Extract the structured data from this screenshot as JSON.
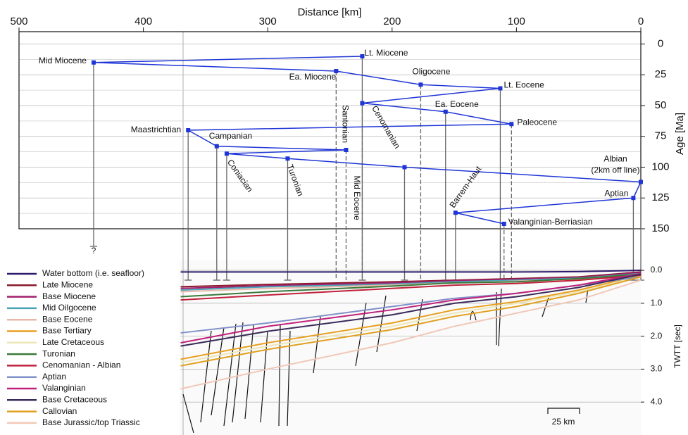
{
  "chart_data": [
    {
      "type": "line",
      "xlabel": "Distance [km]",
      "ylabel": "Age [Ma]",
      "xlim": [
        500,
        0
      ],
      "xticks": [
        500,
        400,
        300,
        200,
        100,
        0
      ],
      "ylim": [
        -10,
        150
      ],
      "yticks": [
        0,
        25,
        50,
        75,
        100,
        125,
        150
      ],
      "minor_yticks": [
        12.5,
        37.5,
        62.5,
        87.5,
        112.5,
        137.5
      ],
      "y_inverted": true,
      "grid": true,
      "color": "#1f35d6",
      "labels": [
        "Lt. Miocene",
        "Mid Miocene",
        "Ea. Miocene",
        "Oligocene",
        "Lt. Eocene",
        "Mid Eocene",
        "Ea. Eocene",
        "Paleocene",
        "Maastrichtian",
        "Campanian",
        "Santonian",
        "Coniacian",
        "Turonian",
        "Cenomanian",
        "Albian",
        "Aptian",
        "Barrem-Haut",
        "Valanginian-Berriasian"
      ],
      "x": [
        224,
        440,
        245,
        177,
        113,
        224,
        157,
        104,
        364,
        341,
        237,
        333,
        284,
        190,
        0,
        6,
        149,
        110
      ],
      "values": [
        10,
        15,
        22,
        33,
        36,
        48,
        55,
        65,
        70,
        83,
        86,
        89,
        93,
        100,
        112,
        125,
        137,
        146
      ],
      "drop_dashed": [
        false,
        false,
        true,
        true,
        false,
        true,
        false,
        true,
        false,
        false,
        true,
        false,
        false,
        false,
        false,
        false,
        false,
        true
      ],
      "annotations": [
        "(2km off line)",
        "?"
      ]
    },
    {
      "type": "line",
      "ylabel": "TWTT [sec]",
      "xlim": [
        500,
        0
      ],
      "ylim": [
        -0.3,
        5.0
      ],
      "yticks": [
        {
          "value": 0,
          "label": "0.0"
        },
        {
          "value": 1,
          "label": "1.0"
        },
        {
          "value": 2,
          "label": "2.0"
        },
        {
          "value": 3,
          "label": "3.0"
        },
        {
          "value": 4,
          "label": "4.0"
        }
      ],
      "x": [
        370,
        300,
        200,
        150,
        100,
        50,
        0
      ],
      "legend": "left",
      "scale_bar_label": "25 km",
      "series": [
        {
          "name": "Water bottom (i.e. seafloor)",
          "color": "#2e1a6b",
          "values": [
            0.05,
            0.05,
            0.05,
            0.05,
            0.05,
            0.04,
            0.0
          ]
        },
        {
          "name": "Late Miocene",
          "color": "#8b1a2b",
          "values": [
            0.5,
            0.43,
            0.35,
            0.3,
            0.25,
            0.2,
            0.05
          ]
        },
        {
          "name": "Base Miocene",
          "color": "#a0206e",
          "values": [
            0.55,
            0.47,
            0.38,
            0.32,
            0.27,
            0.22,
            0.07
          ]
        },
        {
          "name": "Mid Oilgocene",
          "color": "#4aa3b5",
          "values": [
            0.6,
            0.5,
            0.42,
            0.35,
            0.3,
            0.24,
            0.1
          ]
        },
        {
          "name": "Base Eocene",
          "color": "#e8b8a8",
          "values": [
            0.65,
            0.55,
            0.45,
            0.38,
            0.33,
            0.27,
            0.12
          ]
        },
        {
          "name": "Base Tertiary",
          "color": "#e8a020",
          "values": [
            2.7,
            2.2,
            1.6,
            1.2,
            0.95,
            0.6,
            0.15
          ]
        },
        {
          "name": "Late Cretaceous",
          "color": "#ece6b8",
          "values": [
            2.8,
            2.3,
            1.7,
            1.3,
            1.0,
            0.65,
            0.18
          ]
        },
        {
          "name": "Turonian",
          "color": "#3a7a3a",
          "values": [
            0.8,
            0.65,
            0.48,
            0.38,
            0.35,
            0.25,
            0.12
          ]
        },
        {
          "name": "Cenomanian - Albian",
          "color": "#c0203a",
          "values": [
            0.9,
            0.75,
            0.55,
            0.45,
            0.4,
            0.3,
            0.15
          ]
        },
        {
          "name": "Aptian",
          "color": "#8090c8",
          "values": [
            1.9,
            1.6,
            1.1,
            0.85,
            0.7,
            0.45,
            0.2
          ]
        },
        {
          "name": "Valanginian",
          "color": "#c0207a",
          "values": [
            2.2,
            1.7,
            1.2,
            0.9,
            0.7,
            0.45,
            0.1
          ]
        },
        {
          "name": "Base Cretaceous",
          "color": "#3a2a5a",
          "values": [
            2.3,
            1.85,
            1.35,
            1.0,
            0.8,
            0.52,
            0.12
          ]
        },
        {
          "name": "Callovian",
          "color": "#e0a020",
          "values": [
            2.9,
            2.4,
            1.8,
            1.4,
            1.1,
            0.7,
            0.2
          ]
        },
        {
          "name": "Base Jurassic/top Triassic",
          "color": "#f0c8b8",
          "values": [
            3.6,
            3.0,
            2.2,
            1.7,
            1.3,
            0.9,
            0.3
          ]
        }
      ]
    }
  ]
}
